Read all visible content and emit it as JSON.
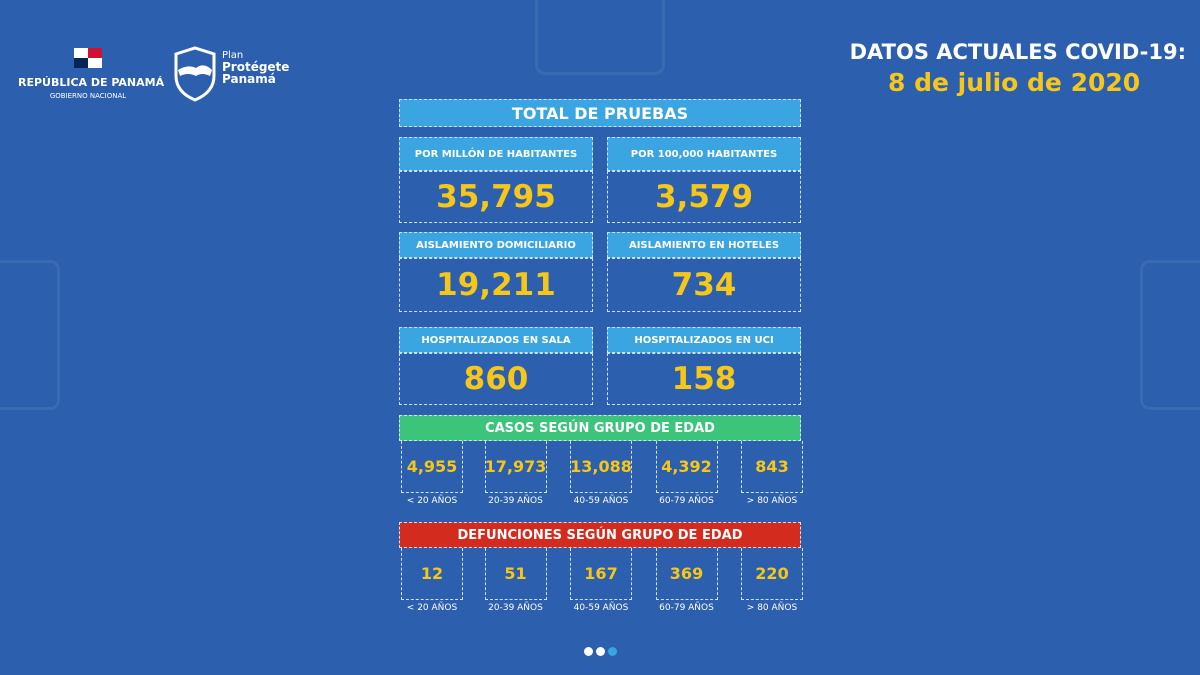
{
  "header": {
    "gov_name": "REPÚBLICA DE PANAMÁ",
    "gov_sub": "GOBIERNO NACIONAL",
    "plan_1": "Plan",
    "plan_2": "Protégete",
    "plan_3": "Panamá",
    "title": "DATOS ACTUALES COVID-19:",
    "date": "8 de julio de 2020"
  },
  "total_title": "TOTAL DE PRUEBAS",
  "stats": [
    {
      "label": "POR MILLÓN DE HABITANTES",
      "value": "35,795"
    },
    {
      "label": "POR 100,000 HABITANTES",
      "value": "3,579"
    },
    {
      "label": "AISLAMIENTO DOMICILIARIO",
      "value": "19,211"
    },
    {
      "label": "AISLAMIENTO EN HOTELES",
      "value": "734"
    },
    {
      "label": "HOSPITALIZADOS EN SALA",
      "value": "860"
    },
    {
      "label": "HOSPITALIZADOS EN UCI",
      "value": "158"
    }
  ],
  "cases": {
    "title": "CASOS SEGÚN GRUPO DE EDAD",
    "values": [
      "4,955",
      "17,973",
      "13,088",
      "4,392",
      "843"
    ],
    "ages": [
      "< 20 AÑOS",
      "20-39 AÑOS",
      "40-59 AÑOS",
      "60-79 AÑOS",
      "> 80 AÑOS"
    ]
  },
  "deaths": {
    "title": "DEFUNCIONES SEGÚN GRUPO DE EDAD",
    "values": [
      "12",
      "51",
      "167",
      "369",
      "220"
    ],
    "ages": [
      "< 20 AÑOS",
      "20-39 AÑOS",
      "40-59 AÑOS",
      "60-79 AÑOS",
      "> 80 AÑOS"
    ]
  },
  "colors": {
    "background": "#2c5fad",
    "label": "#3aa5e0",
    "value": "#f6c719",
    "cases": "#3cc47a",
    "deaths": "#d42b1f"
  },
  "carousel": {
    "pages": 3,
    "active": 3
  }
}
